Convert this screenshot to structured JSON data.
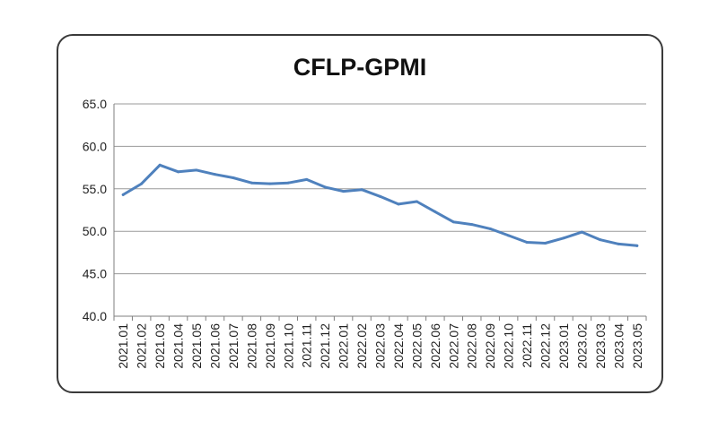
{
  "chart_data": {
    "type": "line",
    "title": "CFLP-GPMI",
    "xlabel": "",
    "ylabel": "",
    "ylim": [
      40.0,
      65.0
    ],
    "yticks": [
      "40.0",
      "45.0",
      "50.0",
      "55.0",
      "60.0",
      "65.0"
    ],
    "grid": true,
    "legend": "none",
    "line_color": "#4f81bd",
    "categories": [
      "2021.01",
      "2021.02",
      "2021.03",
      "2021.04",
      "2021.05",
      "2021.06",
      "2021.07",
      "2021.08",
      "2021.09",
      "2021.10",
      "2021.11",
      "2021.12",
      "2022.01",
      "2022.02",
      "2022.03",
      "2022.04",
      "2022.05",
      "2022.06",
      "2022.07",
      "2022.08",
      "2022.09",
      "2022.10",
      "2022.11",
      "2022.12",
      "2023.01",
      "2023.02",
      "2023.03",
      "2023.04",
      "2023.05"
    ],
    "series": [
      {
        "values": [
          54.3,
          55.6,
          57.8,
          57.0,
          57.2,
          56.7,
          56.3,
          55.7,
          55.6,
          55.7,
          56.1,
          55.2,
          54.7,
          54.9,
          54.1,
          53.2,
          53.5,
          52.3,
          51.1,
          50.8,
          50.3,
          49.5,
          48.7,
          48.6,
          49.2,
          49.9,
          49.0,
          48.5,
          48.3
        ]
      }
    ]
  }
}
